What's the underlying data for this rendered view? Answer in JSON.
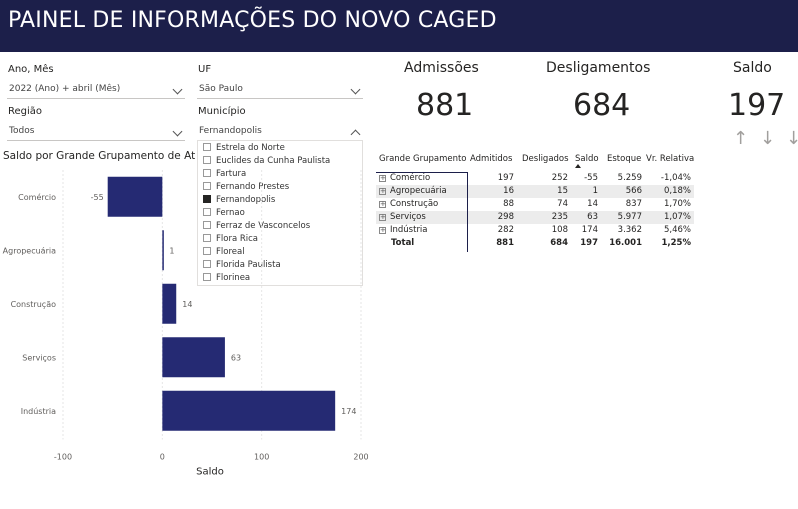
{
  "header": {
    "title": "PAINEL DE INFORMAÇÕES DO NOVO CAGED"
  },
  "filters": {
    "ano_mes": {
      "label": "Ano, Mês",
      "value": "2022 (Ano) + abril (Mês)"
    },
    "uf": {
      "label": "UF",
      "value": "São Paulo"
    },
    "regiao": {
      "label": "Região",
      "value": "Todos"
    },
    "municipio": {
      "label": "Município",
      "value": "Fernandopolis",
      "options": [
        "Estrela do Norte",
        "Euclides da Cunha Paulista",
        "Fartura",
        "Fernando Prestes",
        "Fernandopolis",
        "Fernao",
        "Ferraz de Vasconcelos",
        "Flora Rica",
        "Floreal",
        "Florida Paulista",
        "Florinea"
      ]
    }
  },
  "cards": {
    "admissoes": {
      "label": "Admissões",
      "value": "881"
    },
    "desligamentos": {
      "label": "Desligamentos",
      "value": "684"
    },
    "saldo": {
      "label": "Saldo",
      "value": "197"
    }
  },
  "icons": {
    "up": "arrow-up-icon",
    "down": "arrow-down-icon",
    "more": "arrow-down-more-icon"
  },
  "matrix": {
    "headers": [
      "Grande Grupamento",
      "Admitidos",
      "Desligados",
      "Saldo",
      "Estoque",
      "Vr. Relativa"
    ],
    "rows": [
      [
        "Comércio",
        "197",
        "252",
        "-55",
        "5.259",
        "-1,04%"
      ],
      [
        "Agropecuária",
        "16",
        "15",
        "1",
        "566",
        "0,18%"
      ],
      [
        "Construção",
        "88",
        "74",
        "14",
        "837",
        "1,70%"
      ],
      [
        "Serviços",
        "298",
        "235",
        "63",
        "5.977",
        "1,07%"
      ],
      [
        "Indústria",
        "282",
        "108",
        "174",
        "3.362",
        "5,46%"
      ]
    ],
    "total": [
      "Total",
      "881",
      "684",
      "197",
      "16.001",
      "1,25%"
    ]
  },
  "chart_data": {
    "type": "bar",
    "orientation": "horizontal",
    "title": "Saldo por Grande Grupamento de Ativ",
    "categories": [
      "Comércio",
      "Agropecuária",
      "Construção",
      "Serviços",
      "Indústria"
    ],
    "values": [
      -55,
      1,
      14,
      63,
      174
    ],
    "xlabel": "Saldo",
    "ylabel": "",
    "xlim": [
      -100,
      200
    ],
    "xticks": [
      -100,
      0,
      100,
      200
    ],
    "color": "#252a73"
  },
  "colors": {
    "header_bg": "#1c1f4a",
    "bar": "#252a73"
  }
}
